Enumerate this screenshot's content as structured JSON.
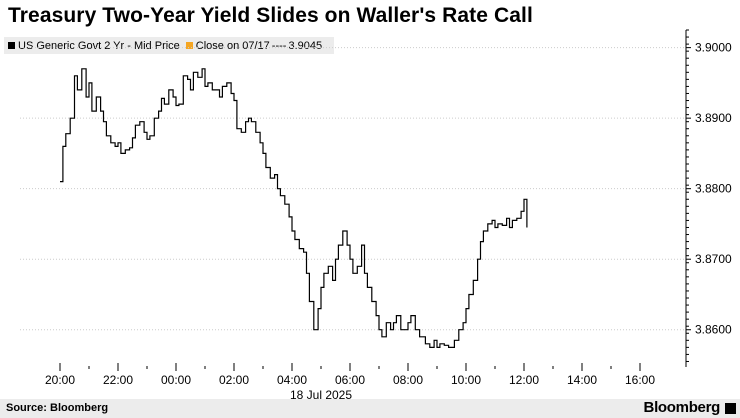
{
  "title": "Treasury Two-Year Yield Slides on Waller's Rate Call",
  "legend": {
    "series_label": "US Generic Govt 2 Yr - Mid Price",
    "close_label": "Close on 07/17",
    "close_value": "3.9045"
  },
  "footer": {
    "source": "Source: Bloomberg",
    "brand": "Bloomberg"
  },
  "colors": {
    "line": "#000000",
    "close_marker": "#f5a623",
    "grid": "#cccccc",
    "panel": "#ececec"
  },
  "chart_data": {
    "type": "line",
    "title": "Treasury Two-Year Yield Slides on Waller's Rate Call",
    "xlabel": "18 Jul 2025",
    "ylabel": "",
    "x_tick_labels": [
      "20:00",
      "22:00",
      "00:00",
      "02:00",
      "04:00",
      "06:00",
      "08:00",
      "10:00",
      "12:00",
      "14:00",
      "16:00"
    ],
    "y_tick_labels": [
      "3.8600",
      "3.8700",
      "3.8800",
      "3.8900",
      "3.9000"
    ],
    "ylim": [
      3.855,
      3.9025
    ],
    "grid": true,
    "legend_position": "top-left",
    "series": [
      {
        "name": "US Generic Govt 2 Yr - Mid Price",
        "x_hours": [
          0,
          0.1,
          0.2,
          0.35,
          0.5,
          0.6,
          0.75,
          0.9,
          1.0,
          1.1,
          1.25,
          1.4,
          1.5,
          1.6,
          1.75,
          1.9,
          2.0,
          2.1,
          2.25,
          2.4,
          2.5,
          2.6,
          2.75,
          2.9,
          3.0,
          3.1,
          3.25,
          3.4,
          3.5,
          3.6,
          3.75,
          3.9,
          4.0,
          4.1,
          4.25,
          4.4,
          4.5,
          4.6,
          4.75,
          4.9,
          5.0,
          5.1,
          5.25,
          5.4,
          5.5,
          5.6,
          5.75,
          5.9,
          6.0,
          6.1,
          6.25,
          6.4,
          6.5,
          6.6,
          6.75,
          6.9,
          7.0,
          7.1,
          7.25,
          7.4,
          7.5,
          7.6,
          7.75,
          7.9,
          8.0,
          8.1,
          8.25,
          8.4,
          8.5,
          8.6,
          8.75,
          8.9,
          9.0,
          9.1,
          9.25,
          9.4,
          9.5,
          9.6,
          9.75,
          9.9,
          10.0,
          10.1,
          10.25,
          10.4,
          10.5,
          10.6,
          10.75,
          10.9,
          11.0,
          11.1,
          11.25,
          11.4,
          11.5,
          11.6,
          11.75,
          11.9,
          12.0,
          12.1,
          12.25,
          12.4,
          12.5,
          12.6,
          12.75,
          12.9,
          13.0,
          13.1,
          13.25,
          13.4,
          13.5,
          13.6,
          13.75,
          13.9,
          14.0,
          14.1,
          14.25,
          14.4,
          14.5,
          14.6,
          14.75,
          14.9,
          15.0,
          15.1,
          15.25,
          15.4,
          15.5,
          15.6,
          15.75,
          15.9,
          16.0,
          16.1
        ],
        "values": [
          3.881,
          3.886,
          3.8878,
          3.89,
          3.896,
          3.894,
          3.897,
          3.893,
          3.895,
          3.891,
          3.893,
          3.891,
          3.8895,
          3.8875,
          3.8865,
          3.886,
          3.8865,
          3.885,
          3.8855,
          3.8858,
          3.8872,
          3.889,
          3.8895,
          3.888,
          3.887,
          3.8875,
          3.89,
          3.891,
          3.8928,
          3.892,
          3.894,
          3.893,
          3.8918,
          3.892,
          3.896,
          3.8955,
          3.894,
          3.8965,
          3.8958,
          3.897,
          3.8945,
          3.895,
          3.894,
          3.894,
          3.893,
          3.8945,
          3.895,
          3.8935,
          3.8925,
          3.8885,
          3.888,
          3.8895,
          3.89,
          3.8895,
          3.888,
          3.8865,
          3.885,
          3.883,
          3.8815,
          3.882,
          3.88,
          3.879,
          3.8778,
          3.876,
          3.874,
          3.8728,
          3.8715,
          3.871,
          3.868,
          3.864,
          3.86,
          3.863,
          3.866,
          3.868,
          3.869,
          3.867,
          3.87,
          3.872,
          3.874,
          3.872,
          3.87,
          3.868,
          3.869,
          3.872,
          3.868,
          3.866,
          3.864,
          3.862,
          3.86,
          3.859,
          3.861,
          3.86,
          3.861,
          3.862,
          3.86,
          3.86,
          3.861,
          3.862,
          3.86,
          3.859,
          3.859,
          3.858,
          3.8575,
          3.8585,
          3.8575,
          3.858,
          3.8578,
          3.8575,
          3.8575,
          3.8585,
          3.86,
          3.861,
          3.863,
          3.865,
          3.867,
          3.87,
          3.8725,
          3.874,
          3.875,
          3.8755,
          3.8745,
          3.875,
          3.8748,
          3.8758,
          3.8745,
          3.8755,
          3.8758,
          3.8768,
          3.8785,
          3.8745
        ]
      }
    ],
    "close_reference": {
      "label": "Close on 07/17",
      "value": 3.9045
    }
  }
}
